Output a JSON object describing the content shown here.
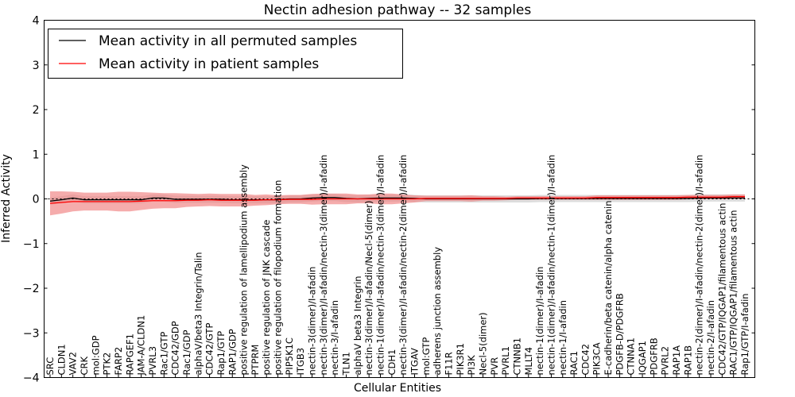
{
  "chart_data": {
    "type": "line",
    "title": "Nectin adhesion pathway -- 32 samples",
    "xlabel": "Cellular Entities",
    "ylabel": "Inferred Activity",
    "ylim": [
      -4,
      4
    ],
    "yticks": [
      -4,
      -3,
      -2,
      -1,
      0,
      1,
      2,
      3,
      4
    ],
    "ytick_labels": [
      "−4",
      "−3",
      "−2",
      "−1",
      "0",
      "1",
      "2",
      "3",
      "4"
    ],
    "legend": {
      "position": "top-left",
      "entries": [
        "Mean activity in all permuted samples",
        "Mean activity in patient samples"
      ]
    },
    "colors": {
      "permuted_line": "#000000",
      "patient_line": "#ff0000",
      "patient_band": "#f08080",
      "permuted_band": "#c0c0c0"
    },
    "categories": [
      "SRC",
      "CLDN1",
      "VAV2",
      "CRK",
      "mol:GDP",
      "PTK2",
      "FARP2",
      "RAPGEF1",
      "JAM-A/CLDN1",
      "PVRL3",
      "Rac1/GTP",
      "CDC42/GDP",
      "Rac1/GDP",
      "alphaV/beta3 Integrin/Talin",
      "CDC42/GTP",
      "Rap1/GTP",
      "RAP1/GDP",
      "positive regulation of lamellipodium assembly",
      "PTPRM",
      "positive regulation of JNK cascade",
      "positive regulation of filopodium formation",
      "PIP5K1C",
      "ITGB3",
      "nectin-3(dimer)/I-afadin",
      "nectin-3(dimer)/I-afadin/nectin-3(dimer)/I-afadin",
      "nectin-3/I-afadin",
      "TLN1",
      "alphaV beta3 Integrin",
      "nectin-3(dimer)/I-afadin/Necl-5(dimer)",
      "nectin-1(dimer)/I-afadin/nectin-3(dimer)/I-afadin",
      "CDH1",
      "nectin-3(dimer)/I-afadin/nectin-2(dimer)/I-afadin",
      "ITGAV",
      "mol:GTP",
      "adherens junction assembly",
      "F11R",
      "PIK3R1",
      "PI3K",
      "Necl-5(dimer)",
      "PVR",
      "PVRL1",
      "CTNNB1",
      "MLLT4",
      "nectin-1(dimer)/I-afadin",
      "nectin-1(dimer)/I-afadin/nectin-1(dimer)/I-afadin",
      "nectin-1/I-afadin",
      "RAC1",
      "CDC42",
      "PIK3CA",
      "E-cadherin/beta catenin/alpha catenin",
      "PDGFB-D/PDGFRB",
      "CTNNA1",
      "IQGAP1",
      "PDGFRB",
      "PVRL2",
      "RAP1A",
      "RAP1B",
      "nectin-2(dimer)/I-afadin/nectin-2(dimer)/I-afadin",
      "nectin-2/I-afadin",
      "CDC42/GTP/IQGAP1/filamentous actin",
      "RAC1/GTP/IQGAP1/filamentous actin",
      "Rap1/GTP/I-afadin"
    ],
    "series": [
      {
        "name": "Mean activity in all permuted samples",
        "values": [
          -0.05,
          -0.02,
          0.02,
          -0.02,
          -0.02,
          -0.02,
          -0.02,
          -0.02,
          -0.02,
          0.02,
          0.02,
          -0.01,
          -0.01,
          -0.01,
          -0.01,
          -0.01,
          -0.02,
          -0.02,
          -0.02,
          -0.02,
          -0.02,
          0.0,
          0.0,
          0.02,
          0.03,
          0.03,
          0.01,
          0.0,
          0.01,
          0.02,
          0.02,
          0.02,
          0.01,
          0.0,
          0.0,
          0.0,
          0.0,
          0.0,
          0.0,
          0.0,
          0.0,
          0.0,
          0.0,
          0.01,
          0.01,
          0.01,
          0.01,
          0.01,
          0.01,
          0.01,
          0.01,
          0.01,
          0.01,
          0.01,
          0.01,
          0.01,
          0.01,
          0.02,
          0.02,
          0.02,
          0.02,
          0.02
        ],
        "band": [
          0.08,
          0.08,
          0.08,
          0.08,
          0.08,
          0.08,
          0.08,
          0.08,
          0.08,
          0.08,
          0.08,
          0.08,
          0.08,
          0.08,
          0.08,
          0.08,
          0.08,
          0.08,
          0.08,
          0.08,
          0.08,
          0.08,
          0.08,
          0.08,
          0.08,
          0.08,
          0.08,
          0.08,
          0.08,
          0.08,
          0.08,
          0.08,
          0.08,
          0.08,
          0.08,
          0.08,
          0.08,
          0.08,
          0.08,
          0.08,
          0.08,
          0.08,
          0.08,
          0.08,
          0.08,
          0.08,
          0.08,
          0.08,
          0.08,
          0.08,
          0.08,
          0.08,
          0.08,
          0.08,
          0.08,
          0.08,
          0.08,
          0.08,
          0.08,
          0.08,
          0.08,
          0.08
        ]
      },
      {
        "name": "Mean activity in patient samples",
        "values": [
          -0.1,
          -0.08,
          -0.06,
          -0.06,
          -0.06,
          -0.06,
          -0.06,
          -0.06,
          -0.05,
          -0.04,
          -0.04,
          -0.04,
          -0.03,
          -0.03,
          -0.02,
          -0.03,
          -0.03,
          -0.03,
          -0.03,
          -0.02,
          -0.02,
          -0.01,
          -0.01,
          -0.01,
          0.0,
          0.0,
          0.0,
          0.0,
          0.0,
          0.0,
          0.0,
          0.0,
          0.0,
          0.01,
          0.01,
          0.01,
          0.01,
          0.01,
          0.01,
          0.01,
          0.01,
          0.02,
          0.02,
          0.02,
          0.02,
          0.02,
          0.02,
          0.02,
          0.03,
          0.03,
          0.03,
          0.03,
          0.03,
          0.03,
          0.03,
          0.03,
          0.04,
          0.04,
          0.04,
          0.04,
          0.05,
          0.05
        ],
        "band": [
          0.27,
          0.25,
          0.22,
          0.2,
          0.2,
          0.2,
          0.22,
          0.22,
          0.2,
          0.18,
          0.17,
          0.17,
          0.15,
          0.14,
          0.14,
          0.14,
          0.14,
          0.14,
          0.12,
          0.12,
          0.1,
          0.1,
          0.1,
          0.12,
          0.12,
          0.12,
          0.12,
          0.1,
          0.1,
          0.12,
          0.12,
          0.1,
          0.08,
          0.06,
          0.06,
          0.06,
          0.06,
          0.07,
          0.05,
          0.05,
          0.04,
          0.04,
          0.04,
          0.04,
          0.04,
          0.04,
          0.04,
          0.04,
          0.05,
          0.05,
          0.05,
          0.05,
          0.05,
          0.05,
          0.05,
          0.05,
          0.05,
          0.05,
          0.05,
          0.05,
          0.05,
          0.05
        ]
      }
    ]
  }
}
